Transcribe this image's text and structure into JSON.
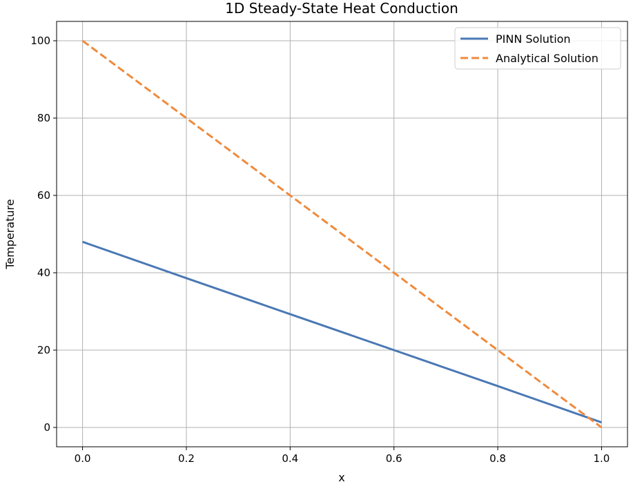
{
  "chart_data": {
    "type": "line",
    "title": "1D Steady-State Heat Conduction",
    "xlabel": "x",
    "ylabel": "Temperature",
    "xlim": [
      -0.05,
      1.05
    ],
    "ylim": [
      -5,
      105
    ],
    "xticks": [
      0.0,
      0.2,
      0.4,
      0.6,
      0.8,
      1.0
    ],
    "xtick_labels": [
      "0.0",
      "0.2",
      "0.4",
      "0.6",
      "0.8",
      "1.0"
    ],
    "yticks": [
      0,
      20,
      40,
      60,
      80,
      100
    ],
    "ytick_labels": [
      "0",
      "20",
      "40",
      "60",
      "80",
      "100"
    ],
    "grid": true,
    "legend_position": "top-right",
    "series": [
      {
        "name": "PINN Solution",
        "color": "#4a78b4",
        "style": "solid",
        "x": [
          0.0,
          0.2,
          0.4,
          0.6,
          0.8,
          1.0
        ],
        "y": [
          48.0,
          38.6,
          29.3,
          20.0,
          10.7,
          1.3
        ]
      },
      {
        "name": "Analytical Solution",
        "color": "#ef8a3c",
        "style": "dashed",
        "x": [
          0.0,
          0.2,
          0.4,
          0.6,
          0.8,
          1.0
        ],
        "y": [
          100.0,
          80.0,
          60.0,
          40.0,
          20.0,
          0.0
        ]
      }
    ]
  }
}
